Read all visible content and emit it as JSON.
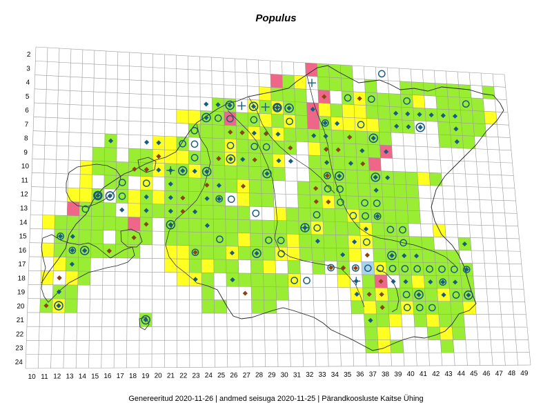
{
  "title": "Populus",
  "footer": "Genereeritud 2020-11-26  |  andmed seisuga 2020-11-25  |  Pärandkoosluste Kaitse Ühing",
  "colors": {
    "green": "#99ee33",
    "yellow": "#ffff22",
    "pink": "#ee6688",
    "light_blue": "#a8d4ec",
    "grid": "#999999",
    "border": "#222222",
    "diamond_blue": "#1a5c80",
    "diamond_brown": "#8b4513",
    "circle_stroke": "#1a5c80"
  },
  "icons": [
    "diamond-marker-icon",
    "circle-marker-icon",
    "cross-marker-icon"
  ],
  "col_labels": [
    "10",
    "11",
    "12",
    "13",
    "14",
    "15",
    "16",
    "17",
    "18",
    "19",
    "20",
    "21",
    "22",
    "23",
    "24",
    "25",
    "26",
    "27",
    "28",
    "29",
    "30",
    "31",
    "32",
    "33",
    "34",
    "35",
    "36",
    "37",
    "38",
    "39",
    "40",
    "41",
    "42",
    "43",
    "44",
    "45",
    "46",
    "47",
    "48",
    "49"
  ],
  "row_labels": [
    "2",
    "3",
    "4",
    "5",
    "6",
    "7",
    "8",
    "9",
    "10",
    "11",
    "12",
    "13",
    "14",
    "15",
    "16",
    "17",
    "18",
    "19",
    "20",
    "21",
    "22",
    "23",
    "24"
  ],
  "green_cells": [
    "33,2",
    "34,2",
    "35,2",
    "36,2",
    "30,3",
    "31,3",
    "32,3",
    "34,3",
    "35,3",
    "36,3",
    "38,3",
    "41,3",
    "42,3",
    "43,3",
    "44,3",
    "45,3",
    "46,3",
    "48,3",
    "29,4",
    "30,4",
    "31,4",
    "32,4",
    "36,4",
    "37,4",
    "38,4",
    "39,4",
    "40,4",
    "41,4",
    "44,4",
    "45,4",
    "46,4",
    "47,4",
    "25,5",
    "26,5",
    "28,5",
    "29,5",
    "30,5",
    "31,5",
    "32,5",
    "33,5",
    "34,5",
    "35,5",
    "36,5",
    "38,5",
    "39,5",
    "40,5",
    "41,5",
    "42,5",
    "43,5",
    "44,5",
    "45,5",
    "46,5",
    "47,5",
    "24,6",
    "25,6",
    "26,6",
    "27,6",
    "28,6",
    "29,6",
    "30,6",
    "31,6",
    "32,6",
    "33,6",
    "34,6",
    "35,6",
    "36,6",
    "37,6",
    "38,6",
    "39,6",
    "40,6",
    "41,6",
    "44,6",
    "45,6",
    "46,6",
    "47,6",
    "23,7",
    "24,7",
    "25,7",
    "26,7",
    "27,7",
    "28,7",
    "29,7",
    "30,7",
    "31,7",
    "32,7",
    "33,7",
    "34,7",
    "35,7",
    "36,7",
    "37,7",
    "38,7",
    "39,7",
    "44,7",
    "45,7",
    "46,7",
    "16,8",
    "22,8",
    "24,8",
    "25,8",
    "26,8",
    "27,8",
    "28,8",
    "29,8",
    "30,8",
    "31,8",
    "33,8",
    "34,8",
    "35,8",
    "36,8",
    "37,8",
    "38,8",
    "39,8",
    "15,9",
    "16,9",
    "18,9",
    "19,9",
    "20,9",
    "21,9",
    "22,9",
    "23,9",
    "24,9",
    "25,9",
    "26,9",
    "27,9",
    "28,9",
    "29,9",
    "30,9",
    "33,9",
    "34,9",
    "35,9",
    "36,9",
    "37,9",
    "38,9",
    "15,10",
    "16,10",
    "17,10",
    "18,10",
    "19,10",
    "20,10",
    "21,10",
    "22,10",
    "23,10",
    "24,10",
    "25,10",
    "26,10",
    "27,10",
    "28,10",
    "29,10",
    "30,10",
    "33,10",
    "34,10",
    "35,10",
    "36,10",
    "37,10",
    "38,10",
    "39,10",
    "40,10",
    "41,10",
    "43,10",
    "16,11",
    "17,11",
    "19,11",
    "21,11",
    "22,11",
    "23,11",
    "24,11",
    "25,11",
    "26,11",
    "27,11",
    "28,11",
    "29,11",
    "32,11",
    "33,11",
    "34,11",
    "35,11",
    "36,11",
    "37,11",
    "38,11",
    "39,11",
    "40,11",
    "41,11",
    "15,12",
    "17,12",
    "19,12",
    "20,12",
    "21,12",
    "22,12",
    "23,12",
    "24,12",
    "25,12",
    "28,12",
    "29,12",
    "32,12",
    "33,12",
    "34,12",
    "35,12",
    "36,12",
    "37,12",
    "38,12",
    "39,12",
    "40,12",
    "41,12",
    "13,13",
    "14,13",
    "15,13",
    "16,13",
    "18,13",
    "19,13",
    "20,13",
    "21,13",
    "22,13",
    "23,13",
    "24,13",
    "25,13",
    "26,13",
    "27,13",
    "30,13",
    "31,13",
    "32,13",
    "33,13",
    "34,13",
    "35,13",
    "36,13",
    "37,13",
    "38,13",
    "39,13",
    "40,13",
    "41,13",
    "12,14",
    "13,14",
    "14,14",
    "15,14",
    "16,14",
    "17,14",
    "19,14",
    "21,14",
    "22,14",
    "23,14",
    "24,14",
    "25,14",
    "26,14",
    "27,14",
    "28,14",
    "29,14",
    "30,14",
    "31,14",
    "32,14",
    "33,14",
    "34,14",
    "35,14",
    "36,14",
    "38,14",
    "39,14",
    "40,14",
    "43,14",
    "12,15",
    "13,15",
    "14,15",
    "15,15",
    "17,15",
    "18,15",
    "19,15",
    "21,15",
    "22,15",
    "23,15",
    "24,15",
    "25,15",
    "26,15",
    "28,15",
    "29,15",
    "30,15",
    "32,15",
    "33,15",
    "34,15",
    "35,15",
    "36,15",
    "38,15",
    "39,15",
    "40,15",
    "41,15",
    "42,15",
    "45,15",
    "12,16",
    "13,16",
    "14,16",
    "15,16",
    "16,16",
    "17,16",
    "18,16",
    "23,16",
    "24,16",
    "25,16",
    "27,16",
    "28,16",
    "29,16",
    "32,16",
    "33,16",
    "34,16",
    "35,16",
    "36,16",
    "38,16",
    "39,16",
    "40,16",
    "41,16",
    "42,16",
    "43,16",
    "44,16",
    "12,17",
    "13,17",
    "14,17",
    "23,17",
    "24,17",
    "25,17",
    "26,17",
    "28,17",
    "31,17",
    "33,17",
    "35,17",
    "37,17",
    "38,17",
    "39,17",
    "40,17",
    "41,17",
    "42,17",
    "43,17",
    "44,17",
    "45,17",
    "13,18",
    "14,18",
    "24,18",
    "26,18",
    "27,18",
    "28,18",
    "29,18",
    "30,18",
    "37,18",
    "40,18",
    "41,18",
    "42,18",
    "43,18",
    "44,18",
    "45,18",
    "12,19",
    "13,19",
    "24,19",
    "28,19",
    "29,19",
    "30,19",
    "37,19",
    "38,19",
    "39,19",
    "40,19",
    "41,19",
    "42,19",
    "43,19",
    "44,19",
    "45,19",
    "11,20",
    "12,20",
    "13,20",
    "24,20",
    "25,20",
    "28,20",
    "29,20",
    "36,20",
    "37,20",
    "38,20",
    "39,20",
    "40,20",
    "41,20",
    "42,20",
    "43,20",
    "44,20",
    "19,21",
    "37,21",
    "38,21",
    "39,21",
    "41,21",
    "43,21",
    "44,21",
    "37,22",
    "38,22",
    "42,22",
    "43,22",
    "44,22",
    "37,23",
    "38,23",
    "39,23",
    "43,23"
  ],
  "yellow_cells": [
    "32,3",
    "29,4",
    "37,4",
    "42,4",
    "28,5",
    "30,5",
    "34,5",
    "36,5",
    "37,5",
    "48,5",
    "22,6",
    "23,6",
    "26,6",
    "29,6",
    "31,6",
    "35,6",
    "36,6",
    "37,6",
    "38,6",
    "28,7",
    "30,7",
    "20,8",
    "21,8",
    "26,8",
    "33,8",
    "20,9",
    "21,9",
    "22,9",
    "26,9",
    "30,9",
    "14,10",
    "20,10",
    "23,10",
    "42,10",
    "14,11",
    "19,11",
    "27,11",
    "13,12",
    "14,12",
    "18,12",
    "20,12",
    "27,12",
    "34,12",
    "18,13",
    "30,13",
    "36,13",
    "11,14",
    "33,14",
    "37,14",
    "43,14",
    "27,15",
    "31,15",
    "36,15",
    "37,15",
    "11,16",
    "21,16",
    "22,16",
    "26,16",
    "30,16",
    "31,16",
    "36,16",
    "12,17",
    "21,17",
    "22,17",
    "24,17",
    "29,17",
    "38,17",
    "11,18",
    "13,18",
    "22,18",
    "23,18",
    "31,18",
    "35,18",
    "41,18",
    "36,19",
    "38,19",
    "43,19",
    "12,20",
    "37,20",
    "40,20",
    "45,20",
    "39,21",
    "42,21",
    "38,22",
    "43,22",
    "38,23"
  ],
  "pink_cells": [
    "33,2",
    "30,3",
    "34,4",
    "33,5",
    "26,6",
    "33,6",
    "39,8",
    "38,9",
    "13,13",
    "18,14",
    "38,18"
  ],
  "blue_cells": [
    "37,17"
  ],
  "diamonds_blue": [
    "16,8",
    "19,8",
    "20,8",
    "24,5",
    "25,5",
    "27,7",
    "28,7",
    "29,7",
    "30,7",
    "19,10",
    "20,10",
    "21,10",
    "22,10",
    "23,10",
    "25,9",
    "27,9",
    "30,9",
    "31,9",
    "34,6",
    "34,9",
    "36,9",
    "37,8",
    "39,8",
    "39,10",
    "40,5",
    "41,5",
    "42,5",
    "43,5",
    "44,5",
    "45,5",
    "45,6",
    "45,7",
    "42,6",
    "41,6",
    "40,6",
    "33,5",
    "33,7",
    "35,6",
    "24,12",
    "25,11",
    "25,12",
    "23,13",
    "24,14",
    "21,12",
    "21,14",
    "21,13",
    "12,15",
    "13,15",
    "13,16",
    "13,17",
    "12,18",
    "12,19",
    "14,16",
    "16,16",
    "21,11",
    "19,12",
    "19,13",
    "17,13",
    "26,16",
    "26,18",
    "23,18",
    "36,7",
    "34,7",
    "34,8",
    "38,10",
    "38,11",
    "38,13",
    "39,16",
    "40,16",
    "41,16",
    "37,14",
    "36,15",
    "33,15",
    "35,16",
    "35,17",
    "36,18",
    "36,19",
    "39,18",
    "40,18",
    "42,18",
    "43,18",
    "43,19",
    "44,18",
    "45,15",
    "45,17",
    "37,21"
  ],
  "diamonds_brown": [
    "18,10",
    "19,10",
    "20,9",
    "22,12",
    "22,13",
    "24,10",
    "24,11",
    "26,7",
    "27,7",
    "29,7",
    "31,8",
    "34,4",
    "34,8",
    "35,8",
    "36,7",
    "37,4",
    "28,9",
    "33,11",
    "34,10",
    "34,12",
    "33,12",
    "25,9",
    "27,11",
    "37,9",
    "16,16",
    "18,15",
    "12,18",
    "11,20",
    "12,20",
    "23,16",
    "19,14",
    "37,16",
    "36,17",
    "34,17",
    "35,17",
    "27,19",
    "37,19",
    "38,19",
    "38,20",
    "38,18"
  ],
  "circles": [
    "39,2",
    "38,4",
    "36,4",
    "37,6",
    "41,4",
    "46,4",
    "34,6",
    "31,6",
    "30,5",
    "25,6",
    "26,6",
    "28,6",
    "29,8",
    "23,7",
    "23,8",
    "26,8",
    "22,8",
    "28,8",
    "23,9",
    "19,11",
    "17,11",
    "15,12",
    "17,12",
    "23,16",
    "25,12",
    "26,12",
    "28,13",
    "29,15",
    "30,15",
    "30,16",
    "25,15",
    "34,11",
    "34,10",
    "35,11",
    "35,12",
    "36,13",
    "37,13",
    "38,13",
    "37,12",
    "38,12",
    "33,14",
    "33,13",
    "31,18",
    "32,18",
    "34,17",
    "36,17",
    "37,17",
    "38,17",
    "39,17",
    "40,17",
    "41,17",
    "42,17",
    "43,17",
    "44,17",
    "45,17",
    "40,19",
    "40,20",
    "41,20",
    "42,20",
    "43,18",
    "44,19",
    "13,16",
    "12,15",
    "14,13",
    "40,15",
    "40,14",
    "39,14",
    "37,15"
  ],
  "circle_diamonds": [
    "22,10",
    "24,6",
    "26,9",
    "24,10",
    "21,14",
    "19,21",
    "12,20",
    "14,16",
    "15,12",
    "35,10",
    "38,10",
    "39,16",
    "41,19",
    "42,6",
    "45,19",
    "28,16",
    "29,10",
    "26,5",
    "28,5",
    "30,5",
    "31,5",
    "32,14",
    "38,7",
    "16,12"
  ],
  "crosses": [
    "27,5",
    "29,5",
    "30,5",
    "21,10",
    "36,18",
    "33,3",
    "32,14"
  ]
}
